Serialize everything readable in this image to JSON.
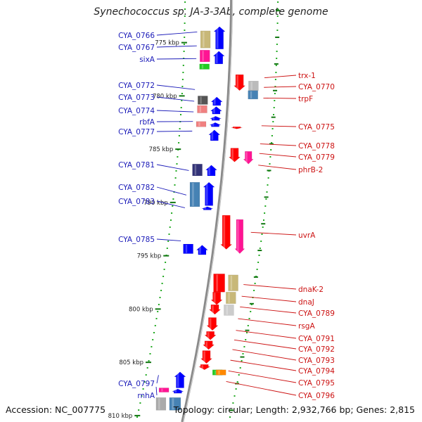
{
  "header": {
    "title": "Synechococcus sp. JA-3-3Ab, complete genome"
  },
  "footer": {
    "accession": "Accession: NC_007775",
    "topology": "Topology: circular; Length: 2,932,766 bp; Genes: 2,815"
  },
  "kbp_ticks": [
    {
      "label": "775 kbp",
      "kbp": 775
    },
    {
      "label": "780 kbp",
      "kbp": 780
    },
    {
      "label": "785 kbp",
      "kbp": 785
    },
    {
      "label": "790 kbp",
      "kbp": 790
    },
    {
      "label": "795 kbp",
      "kbp": 795
    },
    {
      "label": "800 kbp",
      "kbp": 800
    },
    {
      "label": "805 kbp",
      "kbp": 805
    },
    {
      "label": "810 kbp",
      "kbp": 810
    }
  ],
  "genes_left": [
    {
      "name": "CYA_0766",
      "kbp": 774.0
    },
    {
      "name": "CYA_0767",
      "kbp": 775.3
    },
    {
      "name": "sixA",
      "kbp": 776.5
    },
    {
      "name": "CYA_0772",
      "kbp": 779.4
    },
    {
      "name": "CYA_0773",
      "kbp": 780.5
    },
    {
      "name": "CYA_0774",
      "kbp": 781.5
    },
    {
      "name": "rbfA",
      "kbp": 782.4
    },
    {
      "name": "CYA_0777",
      "kbp": 783.3
    },
    {
      "name": "CYA_0781",
      "kbp": 787.0
    },
    {
      "name": "CYA_0782",
      "kbp": 789.3
    },
    {
      "name": "CYA_0783",
      "kbp": 790.5
    },
    {
      "name": "CYA_0785",
      "kbp": 793.6
    },
    {
      "name": "CYA_0797",
      "kbp": 806.2
    },
    {
      "name": "rnhA",
      "kbp": 807.3
    }
  ],
  "genes_right": [
    {
      "name": "trx-1",
      "kbp": 778.3
    },
    {
      "name": "CYA_0770",
      "kbp": 779.2
    },
    {
      "name": "trpF",
      "kbp": 780.2
    },
    {
      "name": "CYA_0775",
      "kbp": 782.8
    },
    {
      "name": "CYA_0778",
      "kbp": 784.5
    },
    {
      "name": "CYA_0779",
      "kbp": 785.4
    },
    {
      "name": "phrB-2",
      "kbp": 786.5
    },
    {
      "name": "uvrA",
      "kbp": 792.8
    },
    {
      "name": "dnaK-2",
      "kbp": 797.7
    },
    {
      "name": "dnaJ",
      "kbp": 798.8
    },
    {
      "name": "CYA_0789",
      "kbp": 799.8
    },
    {
      "name": "rsgA",
      "kbp": 800.9
    },
    {
      "name": "CYA_0791",
      "kbp": 802.0
    },
    {
      "name": "CYA_0792",
      "kbp": 802.9
    },
    {
      "name": "CYA_0793",
      "kbp": 803.8
    },
    {
      "name": "CYA_0794",
      "kbp": 804.8
    },
    {
      "name": "CYA_0795",
      "kbp": 805.8
    },
    {
      "name": "CYA_0796",
      "kbp": 806.8
    }
  ],
  "features": [
    {
      "track": -2,
      "start": 773.9,
      "end": 775.5,
      "color": "#c8b878",
      "arrow": false
    },
    {
      "track": -1,
      "start": 773.5,
      "end": 775.6,
      "color": "#0000ff",
      "arrow": true,
      "dir": -1
    },
    {
      "track": -2,
      "start": 775.7,
      "end": 776.8,
      "color": "#ff1493",
      "arrow": false
    },
    {
      "track": -1,
      "start": 775.8,
      "end": 777.0,
      "color": "#0000ff",
      "arrow": true,
      "dir": -1
    },
    {
      "track": -2,
      "start": 777.0,
      "end": 777.5,
      "color": "#22cc22",
      "arrow": false
    },
    {
      "track": 1,
      "start": 778.0,
      "end": 779.5,
      "color": "#ff0000",
      "arrow": true,
      "dir": 1
    },
    {
      "track": 2,
      "start": 778.6,
      "end": 779.5,
      "color": "#bbbbbb",
      "arrow": false
    },
    {
      "track": 2,
      "start": 779.5,
      "end": 780.3,
      "color": "#4682b4",
      "arrow": false
    },
    {
      "track": -2,
      "start": 780.0,
      "end": 780.8,
      "color": "#555555",
      "arrow": false
    },
    {
      "track": -1,
      "start": 780.1,
      "end": 780.9,
      "color": "#0000ff",
      "arrow": true,
      "dir": -1
    },
    {
      "track": -2,
      "start": 780.9,
      "end": 781.6,
      "color": "#f08080",
      "arrow": false
    },
    {
      "track": -1,
      "start": 781.0,
      "end": 781.7,
      "color": "#0000ff",
      "arrow": true,
      "dir": -1
    },
    {
      "track": -1,
      "start": 781.9,
      "end": 782.3,
      "color": "#0000ff",
      "arrow": true,
      "dir": -1
    },
    {
      "track": -2,
      "start": 782.4,
      "end": 782.9,
      "color": "#f08080",
      "arrow": false
    },
    {
      "track": -1,
      "start": 782.5,
      "end": 782.9,
      "color": "#0000ff",
      "arrow": true,
      "dir": -1
    },
    {
      "track": 1,
      "start": 782.9,
      "end": 783.1,
      "color": "#ff0000",
      "arrow": true,
      "dir": 1
    },
    {
      "track": -1,
      "start": 783.2,
      "end": 784.2,
      "color": "#0000ff",
      "arrow": true,
      "dir": -1
    },
    {
      "track": 1,
      "start": 784.9,
      "end": 786.2,
      "color": "#ff0000",
      "arrow": true,
      "dir": 1
    },
    {
      "track": 2,
      "start": 785.2,
      "end": 786.4,
      "color": "#ff1493",
      "arrow": true,
      "dir": 1
    },
    {
      "track": -2,
      "start": 786.4,
      "end": 787.5,
      "color": "#333377",
      "arrow": false
    },
    {
      "track": -1,
      "start": 786.5,
      "end": 787.5,
      "color": "#0000ff",
      "arrow": true,
      "dir": -1
    },
    {
      "track": -2,
      "start": 788.1,
      "end": 790.4,
      "color": "#4682b4",
      "arrow": false
    },
    {
      "track": -1,
      "start": 788.1,
      "end": 790.3,
      "color": "#0000ff",
      "arrow": true,
      "dir": -1
    },
    {
      "track": -1,
      "start": 790.4,
      "end": 790.7,
      "color": "#0000ff",
      "arrow": true,
      "dir": -1
    },
    {
      "track": 1,
      "start": 791.2,
      "end": 794.4,
      "color": "#ff0000",
      "arrow": true,
      "dir": 1
    },
    {
      "track": 2,
      "start": 791.6,
      "end": 794.8,
      "color": "#ff1493",
      "arrow": true,
      "dir": 1
    },
    {
      "track": -2,
      "start": 793.9,
      "end": 794.8,
      "color": "#0000ff",
      "arrow": false
    },
    {
      "track": -1,
      "start": 794.0,
      "end": 794.9,
      "color": "#0000ff",
      "arrow": true,
      "dir": -1
    },
    {
      "track": 1,
      "start": 796.7,
      "end": 798.4,
      "color": "#ff0000",
      "arrow": false
    },
    {
      "track": 2,
      "start": 796.8,
      "end": 798.3,
      "color": "#c8b878",
      "arrow": false
    },
    {
      "track": 1,
      "start": 798.4,
      "end": 799.6,
      "color": "#ff0000",
      "arrow": true,
      "dir": 1
    },
    {
      "track": 2,
      "start": 798.4,
      "end": 799.5,
      "color": "#c8b878",
      "arrow": false
    },
    {
      "track": 1,
      "start": 799.6,
      "end": 800.5,
      "color": "#ff0000",
      "arrow": true,
      "dir": 1
    },
    {
      "track": 2,
      "start": 799.6,
      "end": 800.6,
      "color": "#cccccc",
      "arrow": false
    },
    {
      "track": 1,
      "start": 800.8,
      "end": 802.0,
      "color": "#ff0000",
      "arrow": true,
      "dir": 1
    },
    {
      "track": 1,
      "start": 802.1,
      "end": 802.9,
      "color": "#ff0000",
      "arrow": true,
      "dir": 1
    },
    {
      "track": 1,
      "start": 803.0,
      "end": 803.8,
      "color": "#ff0000",
      "arrow": true,
      "dir": 1
    },
    {
      "track": 1,
      "start": 803.9,
      "end": 805.1,
      "color": "#ff0000",
      "arrow": true,
      "dir": 1
    },
    {
      "track": 1,
      "start": 805.2,
      "end": 805.7,
      "color": "#ff0000",
      "arrow": true,
      "dir": 1
    },
    {
      "track": 2,
      "start": 805.7,
      "end": 806.2,
      "color": "#22cc22",
      "arrow": false
    },
    {
      "track": 2,
      "start": 805.7,
      "end": 806.2,
      "color": "#ff8800",
      "arrow": false,
      "offset": 5
    },
    {
      "track": -1,
      "start": 805.9,
      "end": 807.4,
      "color": "#0000ff",
      "arrow": true,
      "dir": -1
    },
    {
      "track": -2,
      "start": 807.4,
      "end": 807.8,
      "color": "#ff1493",
      "arrow": false
    },
    {
      "track": -1,
      "start": 807.5,
      "end": 807.9,
      "color": "#0000ff",
      "arrow": true,
      "dir": -1
    },
    {
      "track": -2,
      "start": 808.3,
      "end": 809.5,
      "color": "#aaaaaa",
      "arrow": false
    },
    {
      "track": -1,
      "start": 808.3,
      "end": 809.5,
      "color": "#4682b4",
      "arrow": false
    }
  ]
}
